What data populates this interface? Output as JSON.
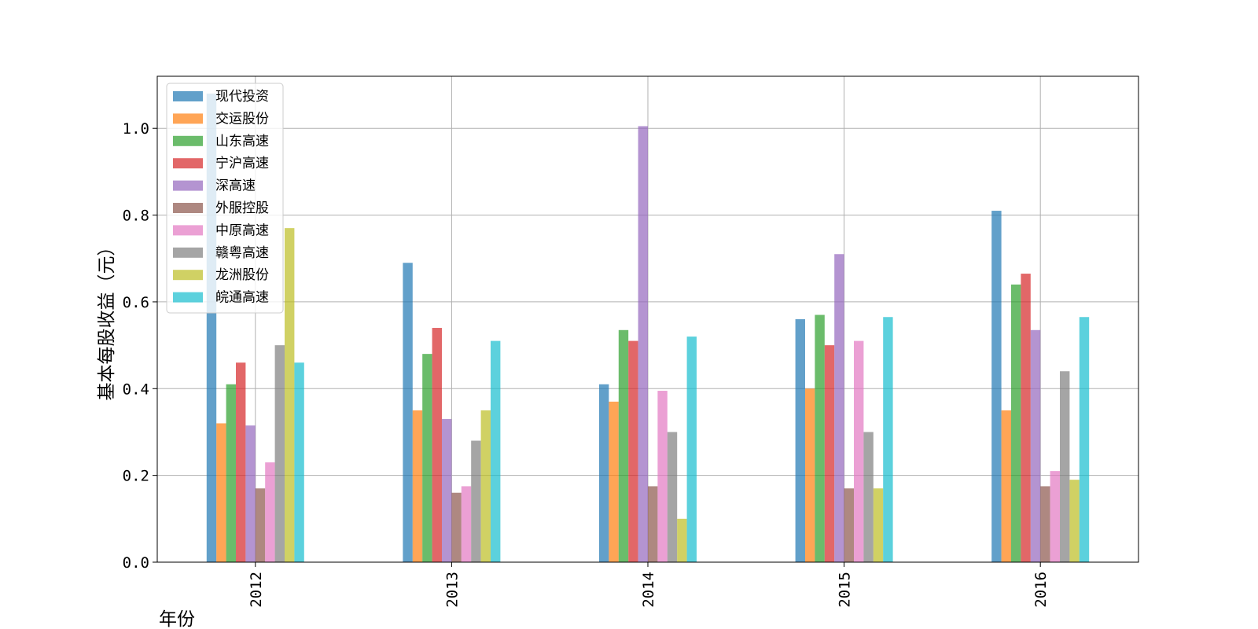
{
  "chart_data": {
    "type": "bar",
    "title": "",
    "xlabel": "年份",
    "ylabel": "基本每股收益（元）",
    "categories": [
      "2012",
      "2013",
      "2014",
      "2015",
      "2016"
    ],
    "ylim": [
      0,
      1.12
    ],
    "yticks": [
      "0.0",
      "0.2",
      "0.4",
      "0.6",
      "0.8",
      "1.0"
    ],
    "grid": true,
    "legend_position": "top-left",
    "series": [
      {
        "name": "现代投资",
        "color": "#1f77b4",
        "values": [
          1.08,
          0.69,
          0.41,
          0.56,
          0.81
        ]
      },
      {
        "name": "交运股份",
        "color": "#ff7f0e",
        "values": [
          0.32,
          0.35,
          0.37,
          0.4,
          0.35
        ]
      },
      {
        "name": "山东高速",
        "color": "#2ca02c",
        "values": [
          0.41,
          0.48,
          0.535,
          0.57,
          0.64
        ]
      },
      {
        "name": "宁沪高速",
        "color": "#d62728",
        "values": [
          0.46,
          0.54,
          0.51,
          0.5,
          0.665
        ]
      },
      {
        "name": "深高速",
        "color": "#9467bd",
        "values": [
          0.315,
          0.33,
          1.005,
          0.71,
          0.535
        ]
      },
      {
        "name": "外服控股",
        "color": "#8c564b",
        "values": [
          0.17,
          0.16,
          0.175,
          0.17,
          0.175
        ]
      },
      {
        "name": "中原高速",
        "color": "#e377c2",
        "values": [
          0.23,
          0.175,
          0.395,
          0.51,
          0.21
        ]
      },
      {
        "name": "赣粤高速",
        "color": "#7f7f7f",
        "values": [
          0.5,
          0.28,
          0.3,
          0.3,
          0.44
        ]
      },
      {
        "name": "龙洲股份",
        "color": "#bcbd22",
        "values": [
          0.77,
          0.35,
          0.1,
          0.17,
          0.19
        ]
      },
      {
        "name": "皖通高速",
        "color": "#17becf",
        "values": [
          0.46,
          0.51,
          0.52,
          0.565,
          0.565
        ]
      }
    ]
  }
}
